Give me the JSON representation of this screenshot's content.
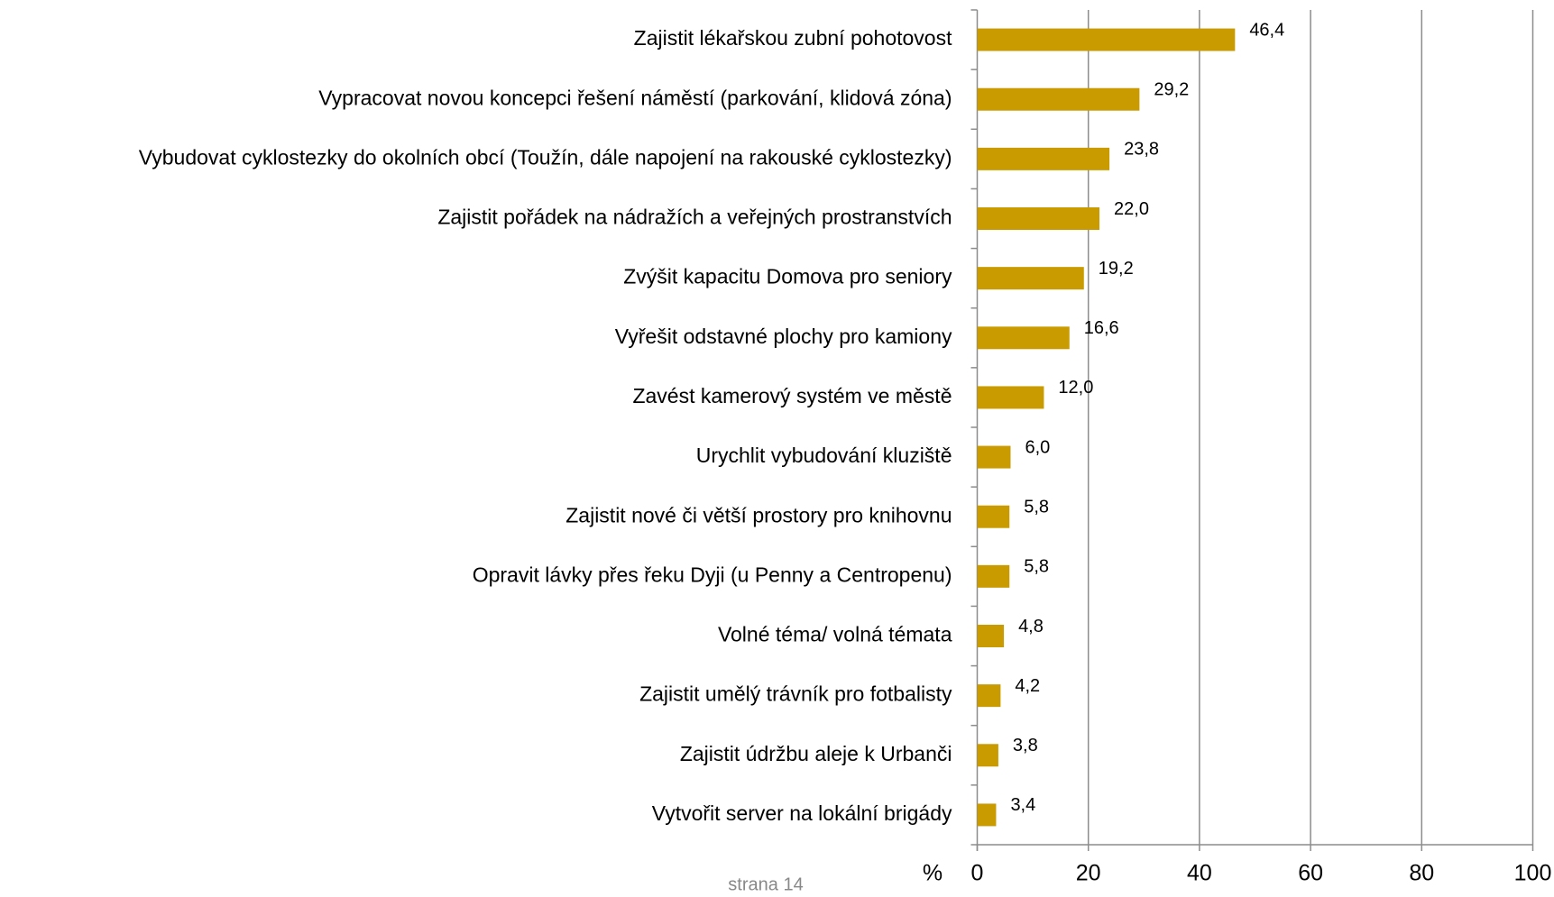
{
  "chart_data": {
    "type": "bar",
    "orientation": "horizontal",
    "categories": [
      "Zajistit lékařskou zubní pohotovost",
      "Vypracovat novou koncepci řešení náměstí (parkování, klidová zóna)",
      "Vybudovat cyklostezky do okolních obcí (Toužín, dále napojení na rakouské cyklostezky)",
      "Zajistit pořádek na nádražích a veřejných prostranstvích",
      "Zvýšit kapacitu Domova pro seniory",
      "Vyřešit odstavné plochy pro kamiony",
      "Zavést kamerový systém ve městě",
      "Urychlit vybudování kluziště",
      "Zajistit nové či větší prostory pro knihovnu",
      "Opravit lávky přes řeku Dyji (u Penny a Centropenu)",
      "Volné téma/ volná témata",
      "Zajistit umělý trávník pro fotbalisty",
      "Zajistit údržbu aleje k Urbanči",
      "Vytvořit server na lokální brigády"
    ],
    "values": [
      46.4,
      29.2,
      23.8,
      22.0,
      19.2,
      16.6,
      12.0,
      6.0,
      5.8,
      5.8,
      4.8,
      4.2,
      3.8,
      3.4
    ],
    "value_labels": [
      "46,4",
      "29,2",
      "23,8",
      "22,0",
      "19,2",
      "16,6",
      "12,0",
      "6,0",
      "5,8",
      "5,8",
      "4,8",
      "4,2",
      "3,8",
      "3,4"
    ],
    "color": "#c99b00",
    "x_label": "%",
    "xlim": [
      0,
      100
    ],
    "xticks": [
      0,
      20,
      40,
      60,
      80,
      100
    ],
    "grid": true,
    "footer": "strana 14"
  }
}
